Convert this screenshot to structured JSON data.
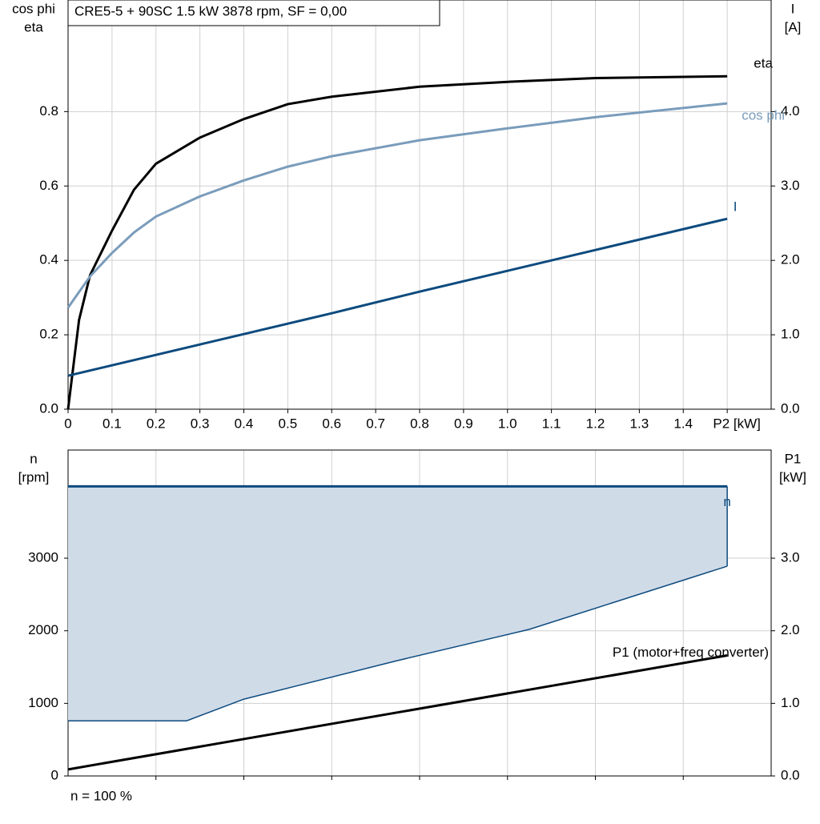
{
  "chart_data": [
    {
      "type": "line",
      "title": "CRE5-5 + 90SC   1.5 kW   3878 rpm, SF = 0,00",
      "ylabel": [
        "cos phi",
        "eta"
      ],
      "y2label": [
        "I",
        "[A]"
      ],
      "x": [
        0,
        0.025,
        0.05,
        0.1,
        0.15,
        0.2,
        0.3,
        0.4,
        0.5,
        0.6,
        0.8,
        1.0,
        1.2,
        1.5
      ],
      "xlim": [
        0,
        1.6
      ],
      "xticks": [
        {
          "value": 0,
          "label": "0"
        },
        0.1,
        0.2,
        0.3,
        0.4,
        0.5,
        0.6,
        0.7,
        0.8,
        0.9,
        {
          "value": 1,
          "label": "1.0"
        },
        1.1,
        1.2,
        1.3,
        1.4,
        {
          "value": 1.5,
          "label": "P2 [kW]"
        }
      ],
      "ylim": [
        0,
        1.1
      ],
      "yticks": [
        {
          "value": 0,
          "label": "0.0"
        },
        0.2,
        0.4,
        0.6,
        0.8
      ],
      "y2lim": [
        0,
        5.5
      ],
      "y2ticks": [
        {
          "value": 0,
          "label": "0.0"
        },
        {
          "value": 1,
          "label": "1.0"
        },
        {
          "value": 2,
          "label": "2.0"
        },
        {
          "value": 3,
          "label": "3.0"
        },
        {
          "value": 4,
          "label": "4.0"
        }
      ],
      "grid": true,
      "series": [
        {
          "name": "eta",
          "color": "#000000",
          "values": [
            0,
            0.24,
            0.36,
            0.48,
            0.59,
            0.66,
            0.73,
            0.78,
            0.82,
            0.84,
            0.867,
            0.88,
            0.89,
            0.895
          ]
        },
        {
          "name": "cos phi",
          "color": "#7a9cbb",
          "values": [
            0.273,
            0.315,
            0.357,
            0.42,
            0.475,
            0.518,
            0.572,
            0.615,
            0.652,
            0.68,
            0.723,
            0.755,
            0.785,
            0.822
          ]
        },
        {
          "name": "I",
          "color": "#0c4a7e",
          "axis": "y2",
          "values": [
            0.45,
            0.485,
            0.52,
            0.59,
            0.66,
            0.73,
            0.87,
            1.01,
            1.15,
            1.29,
            1.58,
            1.86,
            2.14,
            2.56
          ]
        }
      ]
    },
    {
      "type": "area",
      "ylabel": [
        "n",
        "[rpm]"
      ],
      "y2label": [
        "P1",
        "[kW]"
      ],
      "footnote": "n = 100 %",
      "xlim": [
        0,
        1.6
      ],
      "xticks": [
        0.2,
        0.4,
        0.6,
        0.8,
        1.0,
        1.2,
        1.4
      ],
      "ylim": [
        0,
        4490
      ],
      "yticks": [
        0,
        1000,
        2000,
        3000
      ],
      "y2lim": [
        0,
        4.49
      ],
      "y2ticks": [
        {
          "value": 0,
          "label": "0.0"
        },
        {
          "value": 1,
          "label": "1.0"
        },
        {
          "value": 2,
          "label": "2.0"
        },
        {
          "value": 3,
          "label": "3.0"
        }
      ],
      "grid": true,
      "series": [
        {
          "name": "n",
          "color": "#0c4a7e",
          "fill": "#d0dbe8",
          "x": [
            0,
            0.27,
            0.4,
            0.75,
            1.05,
            1.5
          ],
          "values": [
            3990,
            3990,
            3990,
            3990,
            3990,
            3990
          ],
          "lower": [
            760,
            760,
            1058,
            1590,
            2020,
            2890
          ]
        },
        {
          "name": "P1 (motor+freq converter)",
          "color": "#000000",
          "axis": "y2",
          "x": [
            0,
            1.5
          ],
          "values": [
            0.09,
            1.66
          ]
        }
      ]
    }
  ]
}
